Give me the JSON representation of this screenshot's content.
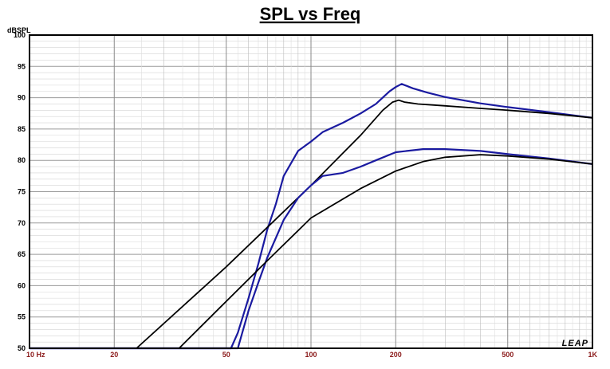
{
  "chart_data": {
    "type": "line",
    "title": "SPL vs Freq",
    "ylabel": "dBSPL",
    "xlabel": "",
    "xscale": "log",
    "xlim": [
      10,
      1000
    ],
    "ylim": [
      50,
      100
    ],
    "yticks": [
      50,
      55,
      60,
      65,
      70,
      75,
      80,
      85,
      90,
      95,
      100
    ],
    "xticks": [
      {
        "value": 10,
        "label": "10 Hz"
      },
      {
        "value": 20,
        "label": "20"
      },
      {
        "value": 50,
        "label": "50"
      },
      {
        "value": 100,
        "label": "100"
      },
      {
        "value": 200,
        "label": "200"
      },
      {
        "value": 500,
        "label": "500"
      },
      {
        "value": 1000,
        "label": "1K"
      }
    ],
    "grid": true,
    "logo": "LEAP",
    "series": [
      {
        "color": "#1a1aa0",
        "x": [
          10,
          52,
          55,
          60,
          65,
          70,
          75,
          80,
          90,
          100,
          110,
          130,
          150,
          170,
          190,
          200,
          210,
          230,
          260,
          300,
          400,
          500,
          700,
          1000
        ],
        "y": [
          50,
          50,
          52.5,
          58,
          63.5,
          69,
          73,
          77.5,
          81.5,
          83,
          84.5,
          86,
          87.5,
          89,
          91,
          91.7,
          92.2,
          91.5,
          90.8,
          90.1,
          89.1,
          88.5,
          87.7,
          86.8
        ]
      },
      {
        "color": "#000000",
        "x": [
          10,
          24,
          50,
          100,
          150,
          180,
          195,
          205,
          215,
          240,
          300,
          400,
          500,
          700,
          1000
        ],
        "y": [
          50,
          50,
          63,
          76,
          84,
          88,
          89.3,
          89.6,
          89.3,
          89,
          88.7,
          88.3,
          88,
          87.5,
          86.8
        ]
      },
      {
        "color": "#1a1aa0",
        "x": [
          10,
          55,
          60,
          65,
          70,
          80,
          90,
          100,
          110,
          130,
          150,
          170,
          200,
          250,
          300,
          400,
          500,
          700,
          1000
        ],
        "y": [
          50,
          50,
          56,
          60.5,
          64.5,
          70.5,
          74,
          76,
          77.5,
          78,
          79,
          80,
          81.3,
          81.8,
          81.8,
          81.5,
          81,
          80.3,
          79.4
        ]
      },
      {
        "color": "#000000",
        "x": [
          10,
          34,
          50,
          70,
          100,
          150,
          200,
          250,
          300,
          400,
          500,
          700,
          1000
        ],
        "y": [
          50,
          50,
          57.5,
          64,
          70.8,
          75.5,
          78.3,
          79.8,
          80.5,
          80.9,
          80.7,
          80.2,
          79.4
        ]
      }
    ]
  }
}
